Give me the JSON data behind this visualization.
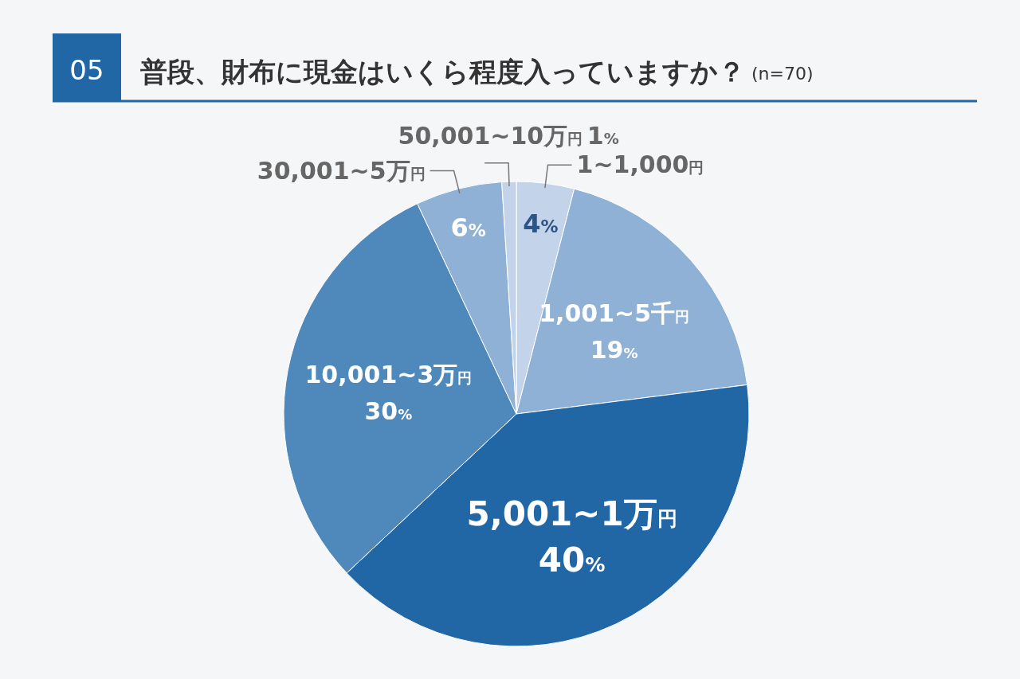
{
  "chart_data": {
    "type": "pie",
    "title": "普段、財布に現金はいくら程度入っていますか？",
    "subtitle": "(n=70)",
    "annotations": [
      "05"
    ],
    "categories": [
      "1~1,000円",
      "1,001~5千円",
      "5,001~1万円",
      "10,001~3万円",
      "30,001~5万円",
      "50,001~10万円"
    ],
    "values": [
      4,
      19,
      40,
      30,
      6,
      1
    ],
    "value_labels": [
      "4%",
      "19%",
      "40%",
      "30%",
      "6%",
      "1%"
    ],
    "colors": [
      "#c3d4ea",
      "#8fb1d5",
      "#2166a5",
      "#4f89bc",
      "#8fb1d5",
      "#c3d4ea"
    ]
  }
}
